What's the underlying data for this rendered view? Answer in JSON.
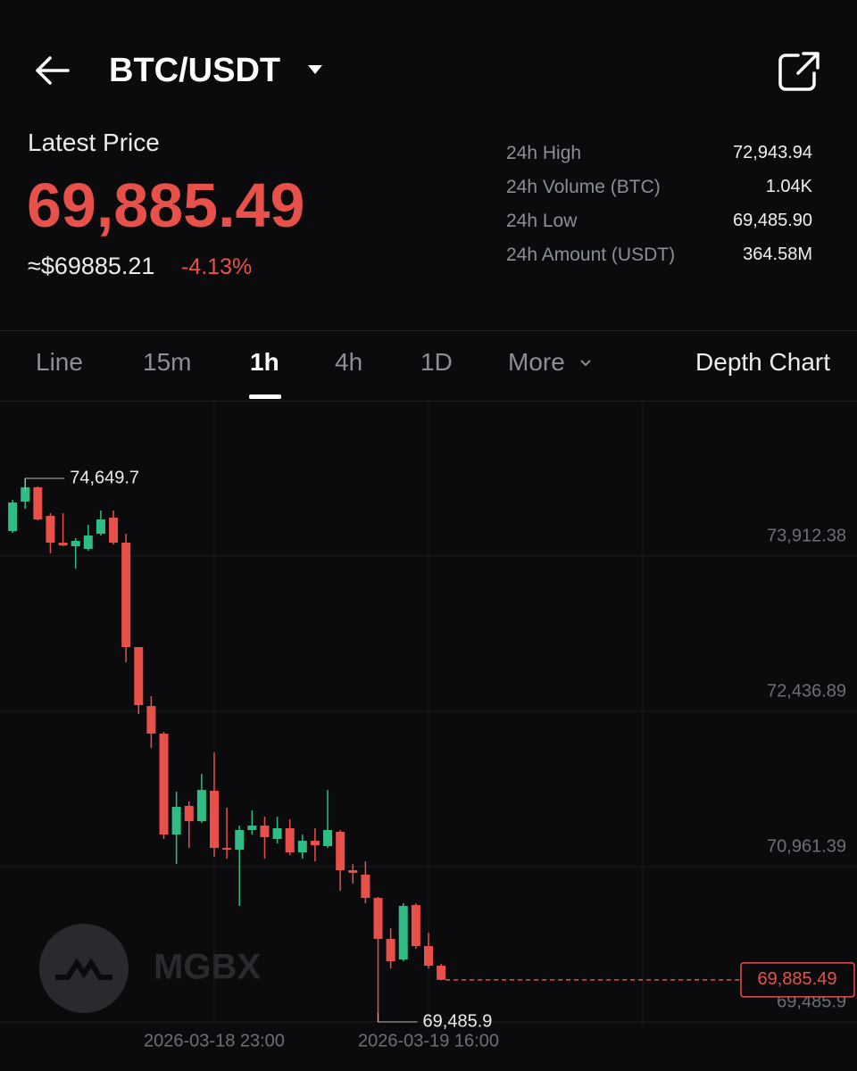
{
  "header": {
    "pair": "BTC/USDT"
  },
  "price": {
    "label": "Latest Price",
    "last": "69,885.49",
    "usd": "≈$69885.21",
    "change": "-4.13%"
  },
  "stats": [
    {
      "label": "24h High",
      "value": "72,943.94"
    },
    {
      "label": "24h Volume (BTC)",
      "value": "1.04K"
    },
    {
      "label": "24h Low",
      "value": "69,485.90"
    },
    {
      "label": "24h Amount (USDT)",
      "value": "364.58M"
    }
  ],
  "tabs": [
    "Line",
    "15m",
    "1h",
    "4h",
    "1D",
    "More",
    "Depth Chart"
  ],
  "chart_data": {
    "type": "candlestick",
    "categories": [
      null,
      null,
      null,
      null,
      null,
      null,
      null,
      null,
      null,
      null,
      null,
      null,
      null,
      null,
      null,
      null,
      "2026-03-18 23:00",
      null,
      null,
      null,
      null,
      null,
      null,
      null,
      null,
      null,
      null,
      null,
      null,
      null,
      null,
      null,
      null,
      "2026-03-19 16:00",
      null
    ],
    "open": [
      74149,
      74429,
      74565,
      74294,
      74039,
      74005,
      73980,
      74124,
      74277,
      74039,
      73047,
      72487,
      72225,
      71266,
      71538,
      71393,
      71682,
      71139,
      71122,
      71309,
      71351,
      71224,
      71326,
      71097,
      71207,
      71156,
      71292,
      70927,
      70885,
      70664,
      70274,
      70079,
      70596,
      70206,
      70020
    ],
    "high": [
      74446,
      74649.7,
      74573,
      74319,
      74319,
      74082,
      74209,
      74345,
      74345,
      74124,
      73047,
      72581,
      72241,
      71673,
      71580,
      71843,
      72046,
      71521,
      71351,
      71495,
      71436,
      71436,
      71410,
      71266,
      71326,
      71690,
      71309,
      70986,
      71012,
      70673,
      70376,
      70613,
      70613,
      70333,
      70037
    ],
    "low": [
      74133,
      74361,
      74251,
      73937,
      74005,
      73793,
      73963,
      74107,
      74022,
      72903,
      72411,
      72089,
      71224,
      70986,
      71139,
      71377,
      71054,
      71037,
      70588,
      71266,
      71037,
      71181,
      71071,
      71037,
      71012,
      71139,
      70732,
      70800,
      70613,
      69485.9,
      69994,
      70062,
      70181,
      69994,
      69880
    ],
    "close": [
      74421,
      74565,
      74260,
      74039,
      74014,
      74056,
      74107,
      74260,
      74039,
      73047,
      72496,
      72225,
      71266,
      71529,
      71393,
      71690,
      71139,
      71122,
      71309,
      71351,
      71241,
      71326,
      71097,
      71207,
      71165,
      71309,
      70927,
      70902,
      70664,
      70274,
      70062,
      70588,
      70206,
      70020,
      69885.49
    ],
    "up_color": "#2ebd85",
    "down_color": "#e8504a",
    "ylim": [
      69443.5,
      75379.4
    ],
    "yticks": [
      {
        "value": 73912.38,
        "label": "73,912.38"
      },
      {
        "value": 72436.89,
        "label": "72,436.89"
      },
      {
        "value": 70961.39,
        "label": "70,961.39"
      },
      {
        "value": 69485.9,
        "label": "69,485.9"
      }
    ],
    "grid": true,
    "high_marker": {
      "value": 74649.7,
      "label": "74,649.7"
    },
    "low_marker": {
      "value": 69485.9,
      "label": "69,485.9"
    },
    "last_price": {
      "value": 69885.49,
      "label": "69,885.49"
    },
    "watermark": "MGBX"
  }
}
